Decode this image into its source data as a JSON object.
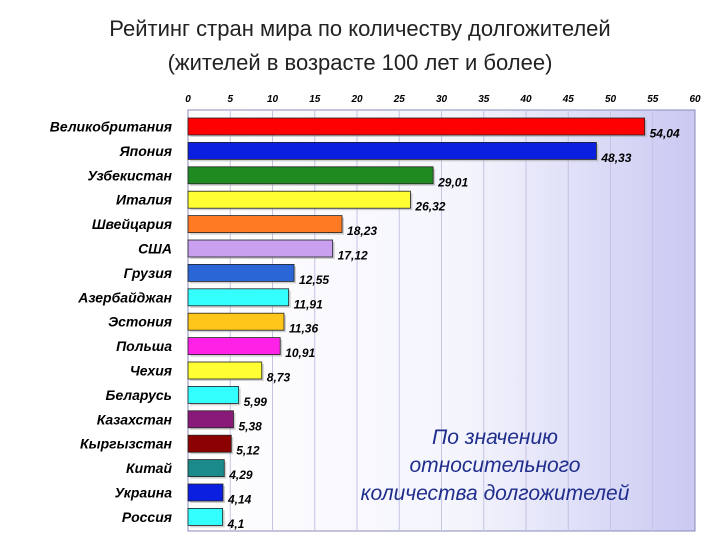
{
  "title": {
    "line1": "Рейтинг стран мира по количеству долгожителей",
    "line2": "(жителей в возрасте 100 лет и более)"
  },
  "note": {
    "line1": "По значению",
    "line2": "относительного",
    "line3": "количества долгожителей"
  },
  "chart_data": {
    "type": "bar",
    "orientation": "horizontal",
    "xlim": [
      0,
      60
    ],
    "ticks": [
      "0",
      "5",
      "10",
      "15",
      "20",
      "25",
      "30",
      "35",
      "40",
      "45",
      "50",
      "55",
      "60"
    ],
    "grid": true,
    "categories": [
      "Великобритания",
      "Япония",
      "Узбекистан",
      "Италия",
      "Швейцария",
      "США",
      "Грузия",
      "Азербайджан",
      "Эстония",
      "Польша",
      "Чехия",
      "Беларусь",
      "Казахстан",
      "Кыргызстан",
      "Китай",
      "Украина",
      "Россия"
    ],
    "values": [
      54.04,
      48.33,
      29.01,
      26.32,
      18.23,
      17.12,
      12.55,
      11.91,
      11.36,
      10.91,
      8.73,
      5.99,
      5.38,
      5.12,
      4.29,
      4.14,
      4.1
    ],
    "value_labels": [
      "54,04",
      "48,33",
      "29,01",
      "26,32",
      "18,23",
      "17,12",
      "12,55",
      "11,91",
      "11,36",
      "10,91",
      "8,73",
      "5,99",
      "5,38",
      "5,12",
      "4,29",
      "4,14",
      "4,1"
    ],
    "colors": [
      "#ff0000",
      "#0a1fe0",
      "#1f8a1f",
      "#ffff33",
      "#ff7a22",
      "#c9a0f0",
      "#2a66d6",
      "#33ffff",
      "#ffc61a",
      "#ff22e6",
      "#ffff33",
      "#33ffff",
      "#8a1a7a",
      "#8b0000",
      "#1a8a8a",
      "#0a1fe0",
      "#33ffff"
    ]
  }
}
